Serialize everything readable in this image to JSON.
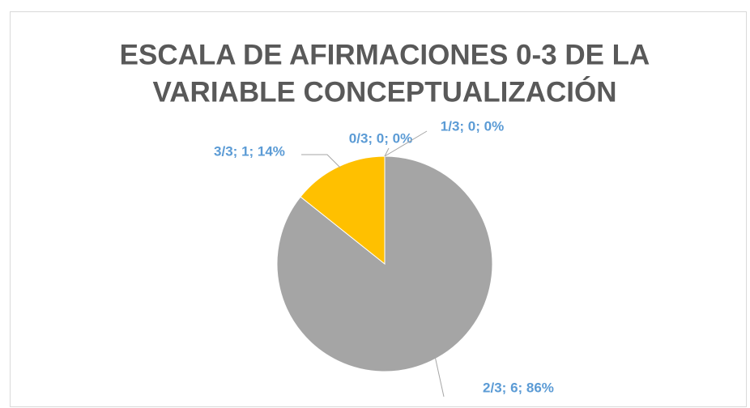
{
  "chart_data": {
    "type": "pie",
    "title": [
      "ESCALA DE AFIRMACIONES 0-3 DE LA",
      "VARIABLE CONCEPTUALIZACIÓN"
    ],
    "categories": [
      "0/3",
      "1/3",
      "2/3",
      "3/3"
    ],
    "values": [
      0,
      0,
      6,
      1
    ],
    "value_labels": [
      "0/3; 0; 0%",
      "1/3; 0; 0%",
      "2/3; 6; 86%",
      "3/3; 1; 14%"
    ],
    "colors": [
      "#5b9bd5",
      "#ed7d31",
      "#a5a5a5",
      "#ffc000"
    ]
  }
}
